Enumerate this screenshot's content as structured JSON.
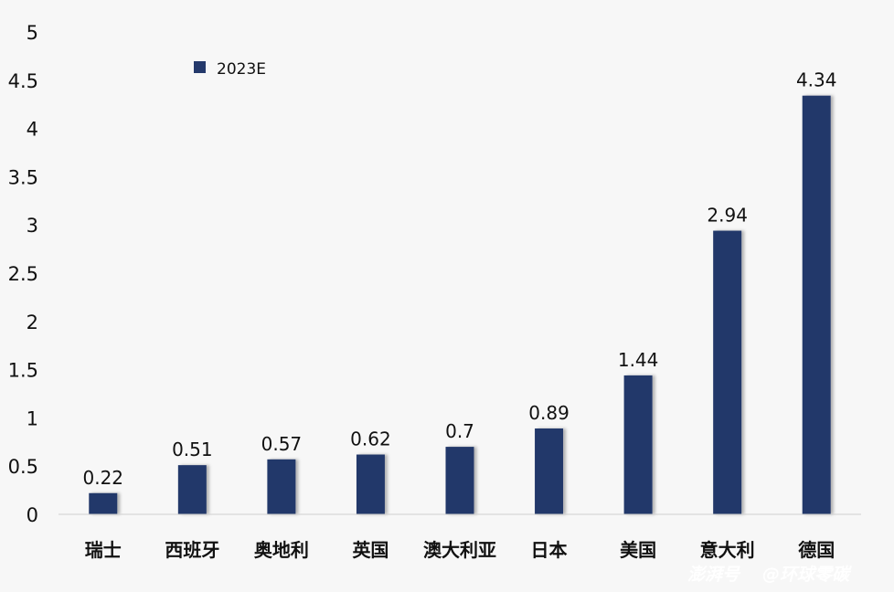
{
  "chart_data": {
    "type": "bar",
    "title": "",
    "xlabel": "",
    "ylabel": "",
    "ylim": [
      0,
      5
    ],
    "yticks": [
      "0",
      "0.5",
      "1",
      "1.5",
      "2",
      "2.5",
      "3",
      "3.5",
      "4",
      "4.5",
      "5"
    ],
    "grid": false,
    "legend_position": "top-left",
    "categories": [
      "瑞士",
      "西班牙",
      "奥地利",
      "英国",
      "澳大利亚",
      "日本",
      "美国",
      "意大利",
      "德国"
    ],
    "series": [
      {
        "name": "2023E",
        "color": "#24396b",
        "values": [
          0.22,
          0.51,
          0.57,
          0.62,
          0.7,
          0.89,
          1.44,
          2.94,
          4.34
        ],
        "labels": [
          "0.22",
          "0.51",
          "0.57",
          "0.62",
          "0.7",
          "0.89",
          "1.44",
          "2.94",
          "4.34"
        ]
      }
    ]
  },
  "watermark": {
    "brand": "澎湃号",
    "account": "@环球零碳"
  }
}
